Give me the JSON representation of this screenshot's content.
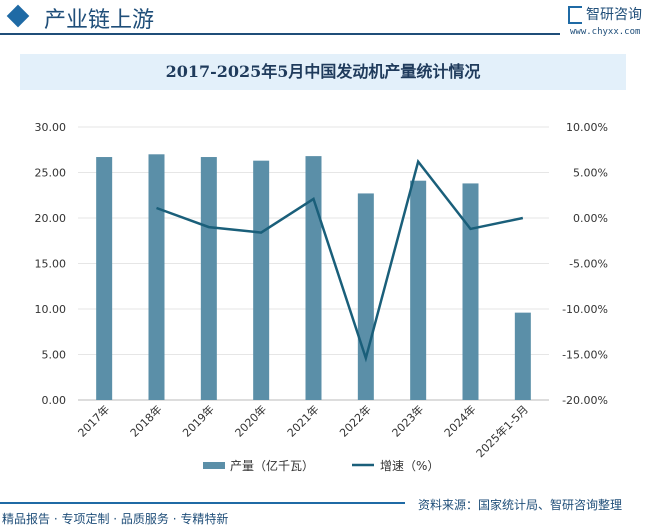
{
  "header": {
    "title": "产业链上游",
    "brand": "智研咨询",
    "url": "www.chyxx.com"
  },
  "footer": {
    "source": "资料来源：国家统计局、智研咨询整理",
    "slogan": "精品报告 · 专项定制 · 品质服务 · 专精特新"
  },
  "colors": {
    "bar": "#5b8fa8",
    "line": "#1a5f7a"
  },
  "chart_data": {
    "type": "bar+line",
    "title": "2017-2025年5月中国发动机产量统计情况",
    "categories": [
      "2017年",
      "2018年",
      "2019年",
      "2020年",
      "2021年",
      "2022年",
      "2023年",
      "2024年",
      "2025年1-5月"
    ],
    "series": [
      {
        "name": "产量（亿千瓦）",
        "type": "bar",
        "axis": "left",
        "values": [
          26.7,
          27.0,
          26.7,
          26.3,
          26.8,
          22.7,
          24.1,
          23.8,
          9.6
        ]
      },
      {
        "name": "增速（%）",
        "type": "line",
        "axis": "right",
        "values": [
          null,
          1.1,
          -1.0,
          -1.6,
          2.1,
          -15.4,
          6.2,
          -1.2,
          0.0
        ]
      }
    ],
    "left_axis": {
      "range": [
        0,
        30
      ],
      "ticks": [
        "0.00",
        "5.00",
        "10.00",
        "15.00",
        "20.00",
        "25.00",
        "30.00"
      ]
    },
    "right_axis": {
      "range": [
        -20,
        10
      ],
      "ticks": [
        "-20.00%",
        "-15.00%",
        "-10.00%",
        "-5.00%",
        "0.00%",
        "5.00%",
        "10.00%"
      ]
    },
    "legend": "bottom",
    "grid": true
  }
}
